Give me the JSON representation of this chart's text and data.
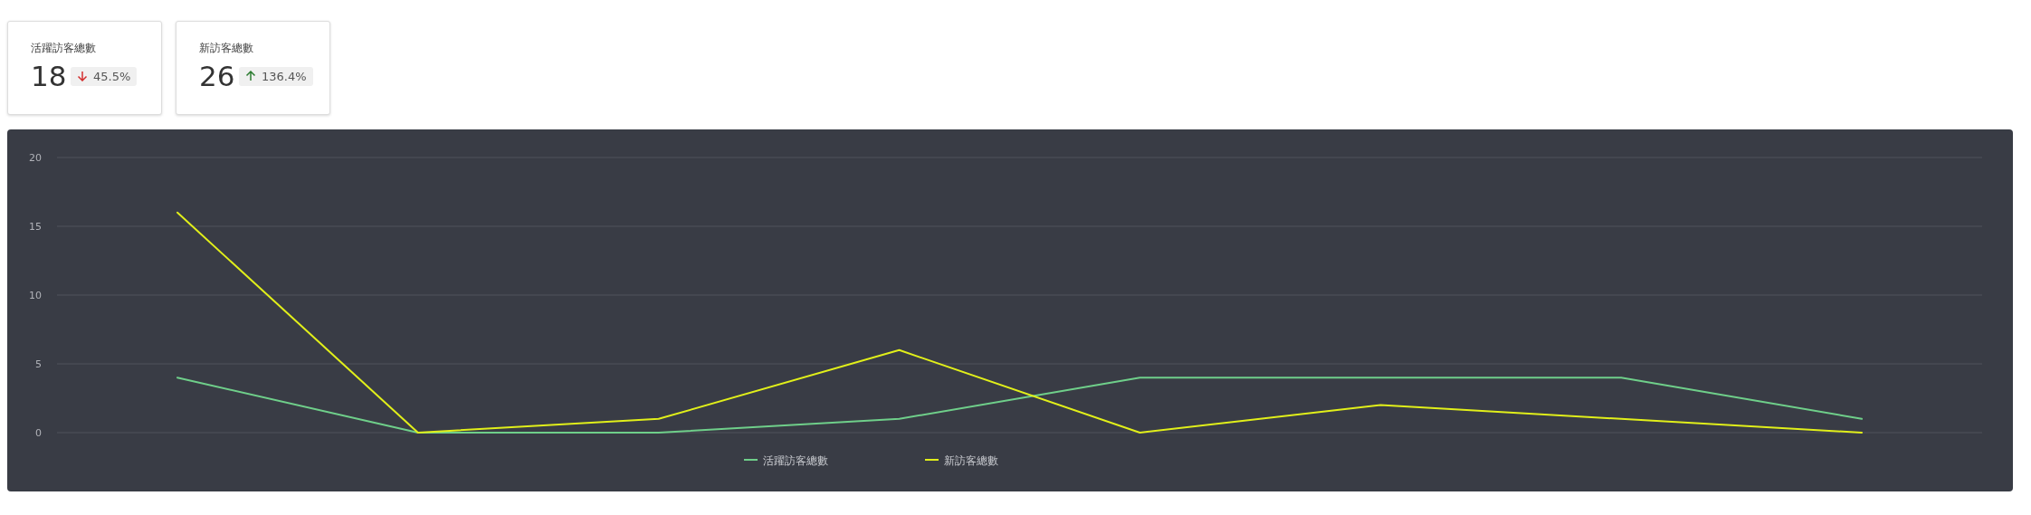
{
  "chart_data": [
    {
      "type": "other",
      "title": "活躍訪客總數",
      "annotations": [
        "18",
        "45.5%"
      ]
    },
    {
      "type": "other",
      "title": "新訪客總數",
      "annotations": [
        "26",
        "136.4%"
      ]
    },
    {
      "type": "line",
      "categories": [
        null,
        null,
        null,
        null,
        null,
        null,
        null,
        null
      ],
      "series": [
        {
          "name": "活躍訪客總數",
          "color": "#6fcf8a",
          "values": [
            4,
            0,
            0,
            1,
            4,
            4,
            4,
            1
          ]
        },
        {
          "name": "新訪客總數",
          "color": "#e1ef1a",
          "values": [
            16,
            0,
            1,
            6,
            0,
            2,
            1,
            0
          ]
        }
      ],
      "ylim": [
        0,
        20
      ],
      "yticks": [
        0,
        5,
        10,
        15,
        20
      ],
      "grid": "y",
      "legend": "bottom",
      "marker": "none",
      "line_style": "solid"
    }
  ]
}
